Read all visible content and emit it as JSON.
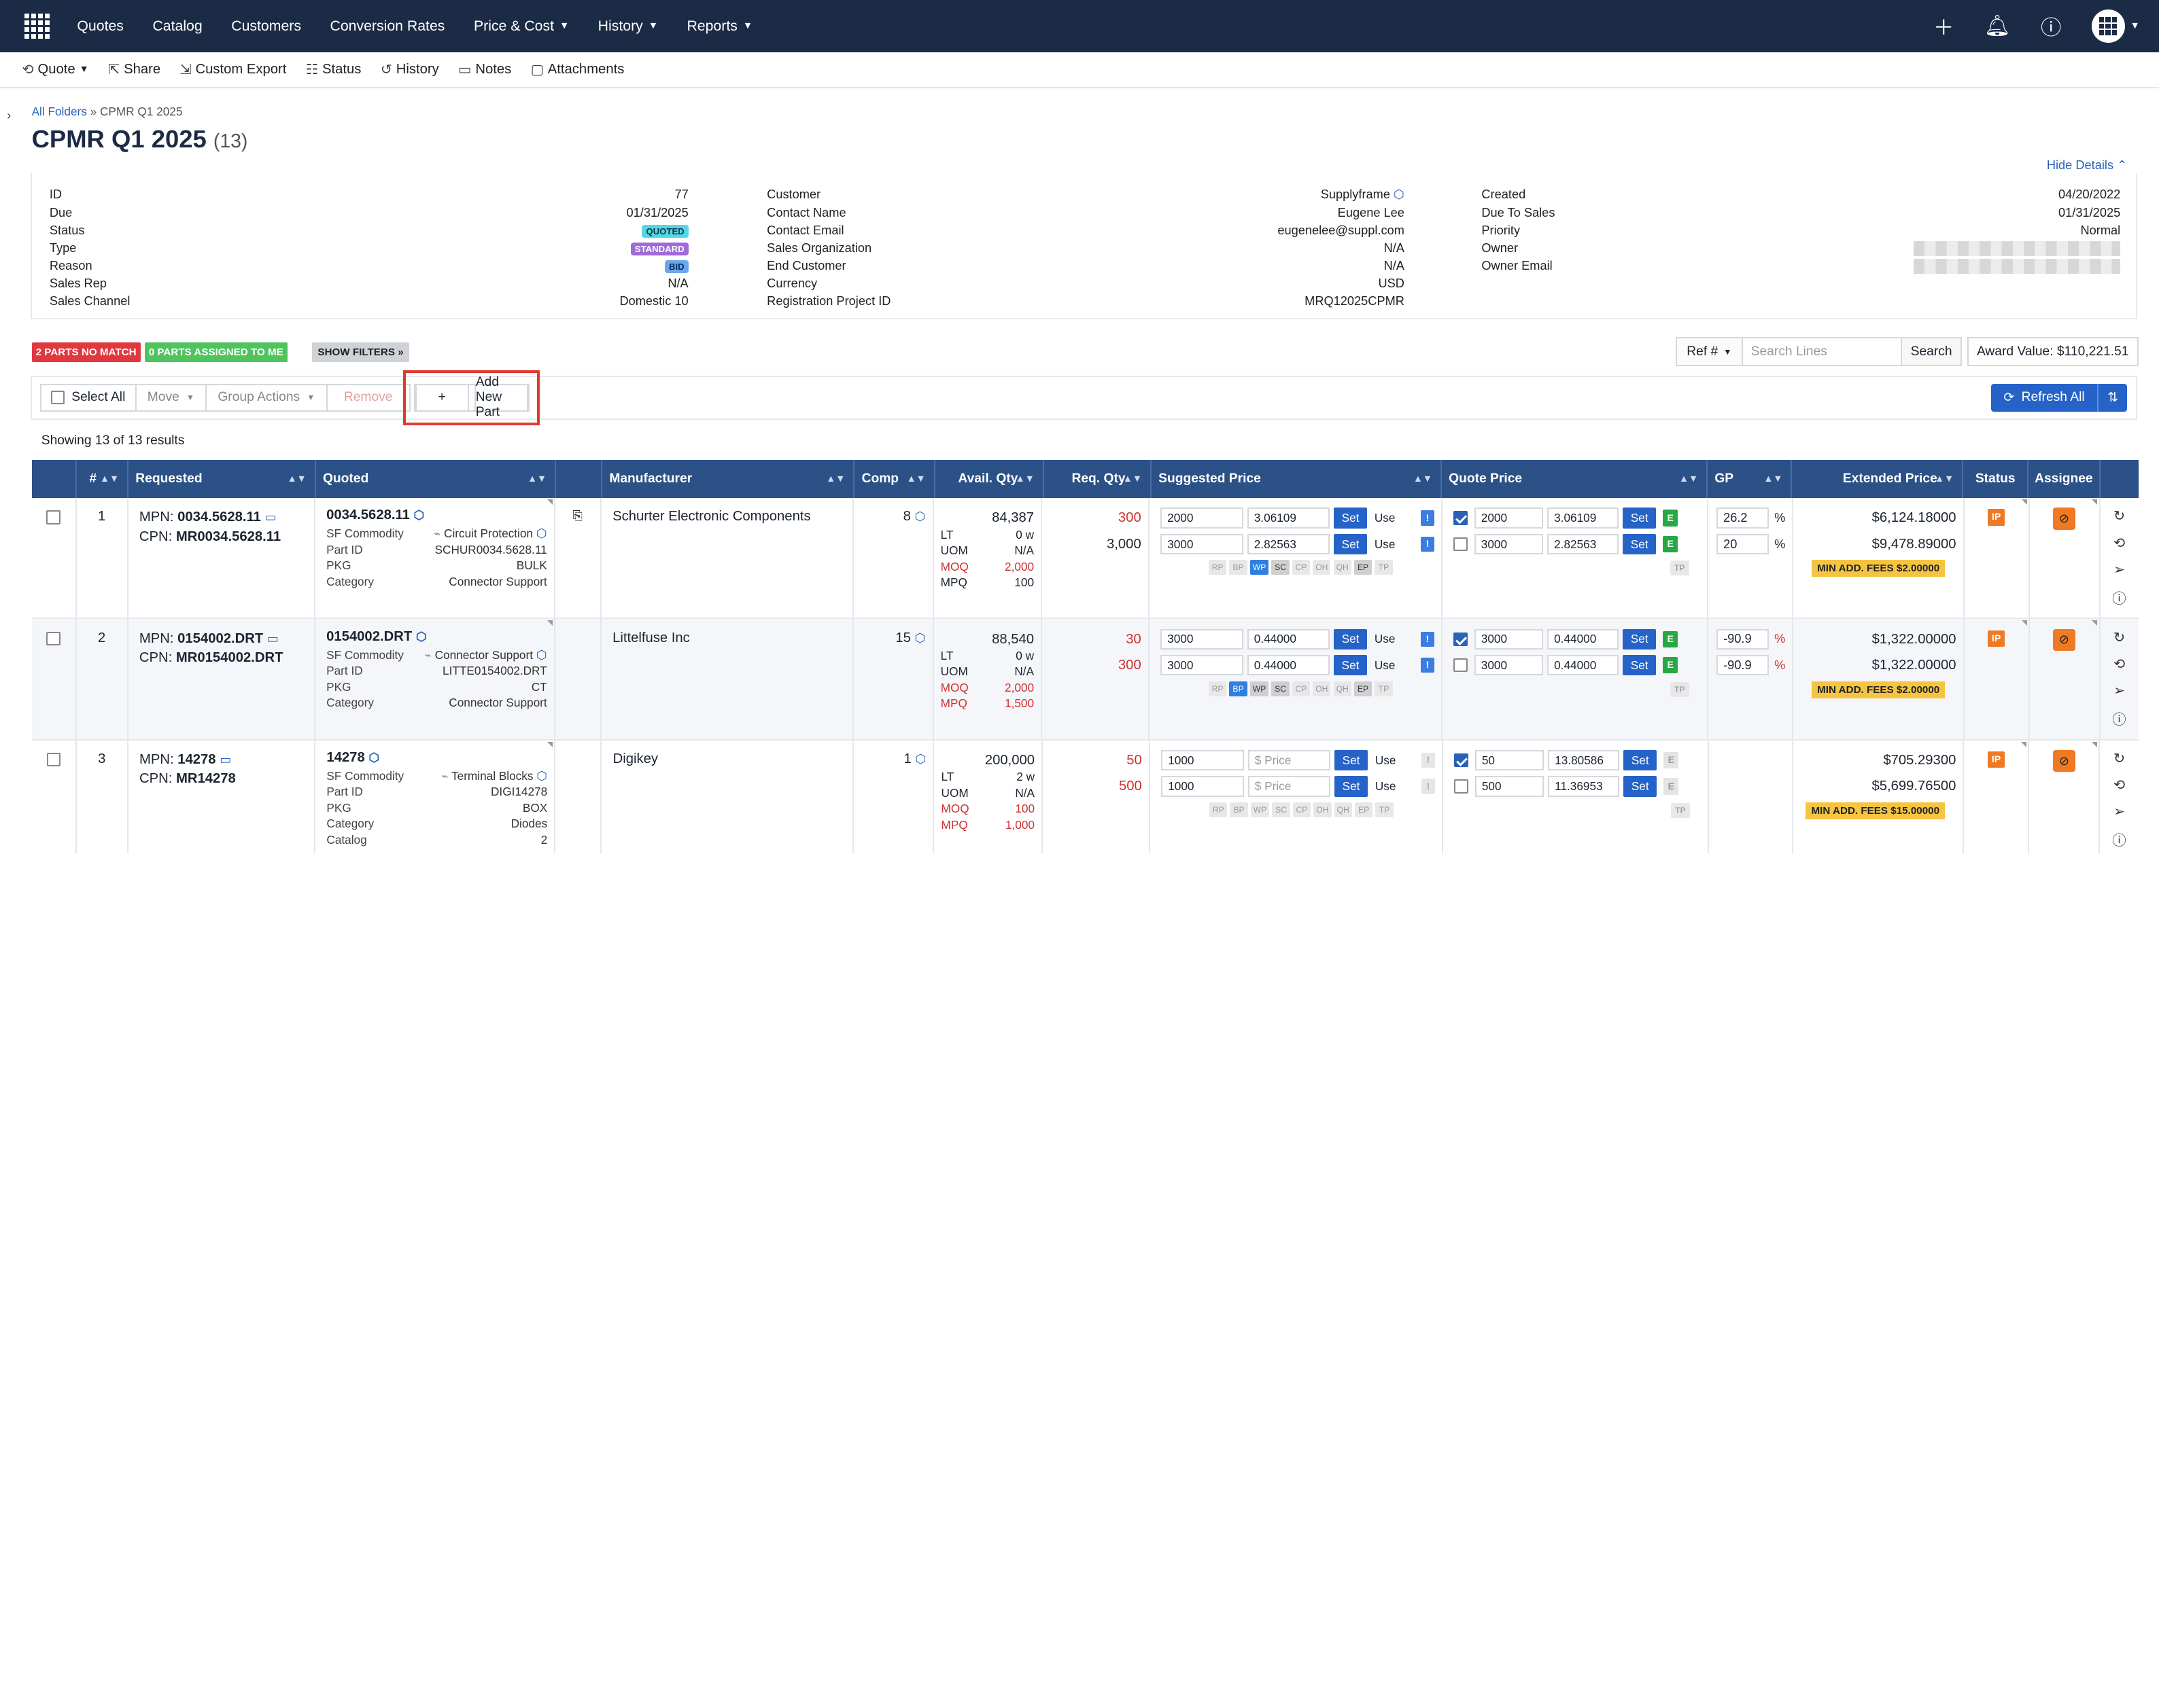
{
  "nav": {
    "items": [
      {
        "label": "Quotes",
        "chev": false
      },
      {
        "label": "Catalog",
        "chev": false
      },
      {
        "label": "Customers",
        "chev": false
      },
      {
        "label": "Conversion Rates",
        "chev": false
      },
      {
        "label": "Price & Cost",
        "chev": true
      },
      {
        "label": "History",
        "chev": true
      },
      {
        "label": "Reports",
        "chev": true
      }
    ]
  },
  "toolbar": {
    "quote": "Quote",
    "share": "Share",
    "custom_export": "Custom Export",
    "status": "Status",
    "history": "History",
    "notes": "Notes",
    "attachments": "Attachments"
  },
  "breadcrumb": {
    "root": "All Folders",
    "sep": " » ",
    "current": "CPMR Q1 2025"
  },
  "page": {
    "title": "CPMR Q1 2025",
    "count": "(13)",
    "hide_details": "Hide Details ⌃"
  },
  "details": {
    "col1": [
      {
        "label": "ID",
        "value": "77"
      },
      {
        "label": "Due",
        "value": "01/31/2025"
      },
      {
        "label": "Status",
        "badge": "QUOTED"
      },
      {
        "label": "Type",
        "badge": "STANDARD"
      },
      {
        "label": "Reason",
        "badge": "BID"
      },
      {
        "label": "Sales Rep",
        "value": "N/A"
      },
      {
        "label": "Sales Channel",
        "value": "Domestic 10"
      }
    ],
    "col2": [
      {
        "label": "Customer",
        "value": "Supplyframe"
      },
      {
        "label": "Contact Name",
        "value": "Eugene Lee"
      },
      {
        "label": "Contact Email",
        "value": "eugenelee@suppl.com"
      },
      {
        "label": "Sales Organization",
        "value": "N/A"
      },
      {
        "label": "End Customer",
        "value": "N/A"
      },
      {
        "label": "Currency",
        "value": "USD"
      },
      {
        "label": "Registration Project ID",
        "value": "MRQ12025CPMR"
      }
    ],
    "col3": [
      {
        "label": "Created",
        "value": "04/20/2022"
      },
      {
        "label": "Due To Sales",
        "value": "01/31/2025"
      },
      {
        "label": "Priority",
        "value": "Normal"
      },
      {
        "label": "Owner",
        "value": ""
      },
      {
        "label": "Owner Email",
        "value": ""
      }
    ]
  },
  "filters": {
    "no_match": "2 PARTS NO MATCH",
    "assigned": "0 PARTS ASSIGNED TO ME",
    "show": "SHOW FILTERS »"
  },
  "search": {
    "ref": "Ref #",
    "placeholder": "Search Lines",
    "button": "Search",
    "award": "Award Value: $110,221.51"
  },
  "actions": {
    "select_all": "Select All",
    "move": "Move",
    "group": "Group Actions",
    "remove": "Remove",
    "add_part": "Add New Part",
    "refresh": "Refresh All"
  },
  "showing": "Showing 13 of 13 results",
  "columns": [
    "#",
    "Requested",
    "Quoted",
    "",
    "Manufacturer",
    "Comp",
    "Avail. Qty",
    "Req. Qty",
    "Suggested Price",
    "Quote Price",
    "GP",
    "Extended Price",
    "Status",
    "Assignee"
  ],
  "rows": [
    {
      "n": "1",
      "mpn": "0034.5628.11",
      "cpn": "MR0034.5628.11",
      "quoted": "0034.5628.11",
      "sf": "Circuit Protection",
      "partid": "SCHUR0034.5628.11",
      "pkg": "BULK",
      "category": "Connector Support",
      "catalog": "",
      "mfr": "Schurter Electronic Components",
      "comp": "8",
      "avail": "84,387",
      "lt": "0 w",
      "uom": "N/A",
      "moq": "2,000",
      "mpq": "100",
      "req": [
        {
          "v": "300",
          "red": true
        },
        {
          "v": "3,000",
          "red": false
        }
      ],
      "sugg": [
        {
          "q": "2000",
          "p": "3.06109"
        },
        {
          "q": "3000",
          "p": "2.82563"
        }
      ],
      "chips": [
        "RP",
        "BP",
        "WP",
        "SC",
        "CP",
        "OH",
        "QH",
        "EP",
        "TP"
      ],
      "chips_on": [
        "WP"
      ],
      "chips_dk": [
        "SC",
        "EP"
      ],
      "ex": true,
      "qp": [
        {
          "chk": true,
          "q": "2000",
          "p": "3.06109",
          "e": true
        },
        {
          "chk": false,
          "q": "3000",
          "p": "2.82563",
          "e": true
        }
      ],
      "gp": [
        {
          "v": "26.2",
          "red": false
        },
        {
          "v": "20",
          "red": false
        }
      ],
      "ext": [
        "$6,124.18000",
        "$9,478.89000"
      ],
      "fee": "MIN ADD. FEES $2.00000",
      "status": "IP"
    },
    {
      "n": "2",
      "mpn": "0154002.DRT",
      "cpn": "MR0154002.DRT",
      "quoted": "0154002.DRT",
      "sf": "Connector Support",
      "partid": "LITTE0154002.DRT",
      "pkg": "CT",
      "category": "Connector Support",
      "catalog": "",
      "mfr": "Littelfuse Inc",
      "comp": "15",
      "avail": "88,540",
      "lt": "0 w",
      "uom": "N/A",
      "moq": "2,000",
      "mpq": "1,500",
      "req": [
        {
          "v": "30",
          "red": true
        },
        {
          "v": "300",
          "red": true
        }
      ],
      "sugg": [
        {
          "q": "3000",
          "p": "0.44000"
        },
        {
          "q": "3000",
          "p": "0.44000"
        }
      ],
      "chips": [
        "RP",
        "BP",
        "WP",
        "SC",
        "CP",
        "OH",
        "QH",
        "EP",
        "TP"
      ],
      "chips_on": [
        "BP"
      ],
      "chips_dk": [
        "WP",
        "SC",
        "EP"
      ],
      "ex": true,
      "qp": [
        {
          "chk": true,
          "q": "3000",
          "p": "0.44000",
          "e": true
        },
        {
          "chk": false,
          "q": "3000",
          "p": "0.44000",
          "e": true
        }
      ],
      "gp": [
        {
          "v": "-90.9",
          "red": true
        },
        {
          "v": "-90.9",
          "red": true
        }
      ],
      "ext": [
        "$1,322.00000",
        "$1,322.00000"
      ],
      "fee": "MIN ADD. FEES $2.00000",
      "status": "IP"
    },
    {
      "n": "3",
      "mpn": "14278",
      "cpn": "MR14278",
      "quoted": "14278",
      "sf": "Terminal Blocks",
      "partid": "DIGI14278",
      "pkg": "BOX",
      "category": "Diodes",
      "catalog": "2",
      "mfr": "Digikey",
      "comp": "1",
      "avail": "200,000",
      "lt": "2 w",
      "uom": "N/A",
      "moq": "100",
      "mpq": "1,000",
      "req": [
        {
          "v": "50",
          "red": true
        },
        {
          "v": "500",
          "red": true
        }
      ],
      "sugg": [
        {
          "q": "1000",
          "p": "$ Price"
        },
        {
          "q": "1000",
          "p": "$ Price"
        }
      ],
      "chips": [
        "RP",
        "BP",
        "WP",
        "SC",
        "CP",
        "OH",
        "QH",
        "EP",
        "TP"
      ],
      "chips_on": [],
      "chips_dk": [],
      "ex": false,
      "qp": [
        {
          "chk": true,
          "q": "50",
          "p": "13.80586",
          "e": false
        },
        {
          "chk": false,
          "q": "500",
          "p": "11.36953",
          "e": false
        }
      ],
      "gp": [],
      "ext": [
        "$705.29300",
        "$5,699.76500"
      ],
      "fee": "MIN ADD. FEES $15.00000",
      "status": "IP"
    }
  ],
  "labels": {
    "mpn": "MPN:",
    "cpn": "CPN:",
    "sf": "SF Commodity",
    "partid": "Part ID",
    "pkg": "PKG",
    "category": "Category",
    "catalog": "Catalog",
    "lt": "LT",
    "uom": "UOM",
    "moq": "MOQ",
    "mpq": "MPQ",
    "set": "Set",
    "use": "Use",
    "pct": "%",
    "tp": "TP"
  }
}
